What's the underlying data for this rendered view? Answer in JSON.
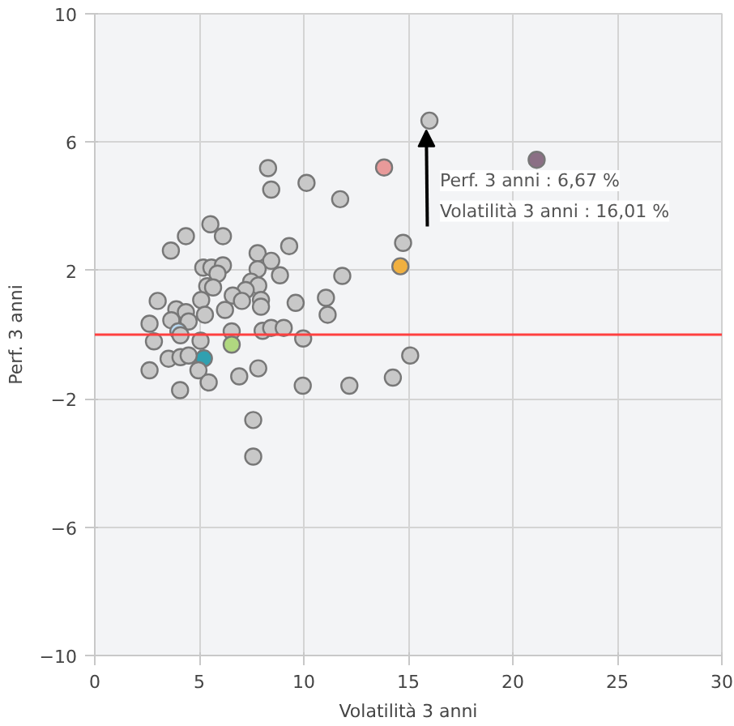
{
  "chart_data": {
    "type": "scatter",
    "xlabel": "Volatilità 3 anni",
    "ylabel": "Perf. 3 anni",
    "xlim": [
      0,
      30
    ],
    "ylim": [
      -10,
      10
    ],
    "xticks": [
      0,
      5,
      10,
      15,
      20,
      25,
      30
    ],
    "yticks": [
      -10,
      -6,
      -2,
      2,
      6,
      10
    ],
    "grid": true,
    "marker": "circle",
    "ref_lines": [
      {
        "axis": "y",
        "value": 0,
        "color": "#ff4040"
      }
    ],
    "annotations": [
      {
        "text": "Perf. 3 anni : 6,67 %",
        "x": 16.01,
        "y": 6.67
      },
      {
        "text": "Volatilità 3 anni : 16,01 %",
        "x": 16.01,
        "y": 6.67
      }
    ],
    "x": [
      16.01,
      13.84,
      21.14,
      14.62,
      14.75,
      8.29,
      8.44,
      10.13,
      11.74,
      5.53,
      4.36,
      6.13,
      3.64,
      9.3,
      7.79,
      8.44,
      5.19,
      5.58,
      6.13,
      5.87,
      7.79,
      8.86,
      11.84,
      5.38,
      5.66,
      7.48,
      7.82,
      7.22,
      6.6,
      7.04,
      7.95,
      7.95,
      5.09,
      9.61,
      11.06,
      11.14,
      6.23,
      3.01,
      3.9,
      4.36,
      5.27,
      3.66,
      4.49,
      2.62,
      6.55,
      8.03,
      8.44,
      9.04,
      4.0,
      4.1,
      2.83,
      5.06,
      9.97,
      6.55,
      5.22,
      3.53,
      4.1,
      4.49,
      4.96,
      2.62,
      5.45,
      4.08,
      6.91,
      7.82,
      15.09,
      14.26,
      9.95,
      12.18,
      7.58,
      7.58
    ],
    "values": [
      6.67,
      5.21,
      5.45,
      2.13,
      2.86,
      5.19,
      4.52,
      4.73,
      4.22,
      3.44,
      3.07,
      3.07,
      2.62,
      2.76,
      2.54,
      2.3,
      2.09,
      2.09,
      2.16,
      1.9,
      2.04,
      1.85,
      1.83,
      1.51,
      1.47,
      1.65,
      1.53,
      1.39,
      1.22,
      1.05,
      1.08,
      0.87,
      1.08,
      0.99,
      1.15,
      0.62,
      0.77,
      1.05,
      0.79,
      0.7,
      0.62,
      0.45,
      0.41,
      0.34,
      0.1,
      0.12,
      0.21,
      0.21,
      0.1,
      -0.02,
      -0.21,
      -0.19,
      -0.12,
      -0.31,
      -0.74,
      -0.75,
      -0.7,
      -0.65,
      -1.11,
      -1.11,
      -1.49,
      -1.73,
      -1.3,
      -1.05,
      -0.65,
      -1.34,
      -1.59,
      -1.59,
      -2.66,
      -3.8
    ],
    "colors": [
      "#c8c8c8",
      "#e89a9a",
      "#8b6f85",
      "#f0b040",
      "#c8c8c8",
      "#c8c8c8",
      "#c8c8c8",
      "#c8c8c8",
      "#c8c8c8",
      "#c8c8c8",
      "#c8c8c8",
      "#c8c8c8",
      "#c8c8c8",
      "#c8c8c8",
      "#c8c8c8",
      "#c8c8c8",
      "#c8c8c8",
      "#c8c8c8",
      "#c8c8c8",
      "#c8c8c8",
      "#c8c8c8",
      "#c8c8c8",
      "#c8c8c8",
      "#c8c8c8",
      "#c8c8c8",
      "#c8c8c8",
      "#c8c8c8",
      "#c8c8c8",
      "#c8c8c8",
      "#c8c8c8",
      "#c8c8c8",
      "#c8c8c8",
      "#c8c8c8",
      "#c8c8c8",
      "#c8c8c8",
      "#c8c8c8",
      "#c8c8c8",
      "#c8c8c8",
      "#c8c8c8",
      "#c8c8c8",
      "#c8c8c8",
      "#c8c8c8",
      "#c8c8c8",
      "#c8c8c8",
      "#c8c8c8",
      "#c8c8c8",
      "#c8c8c8",
      "#c8c8c8",
      "#b8d8f0",
      "#c8c8c8",
      "#c8c8c8",
      "#c8c8c8",
      "#c8c8c8",
      "#b0d880",
      "#30a0b0",
      "#c8c8c8",
      "#c8c8c8",
      "#c8c8c8",
      "#c8c8c8",
      "#c8c8c8",
      "#c8c8c8",
      "#c8c8c8",
      "#c8c8c8",
      "#c8c8c8",
      "#c8c8c8",
      "#c8c8c8",
      "#c8c8c8",
      "#c8c8c8",
      "#c8c8c8",
      "#c8c8c8"
    ]
  }
}
